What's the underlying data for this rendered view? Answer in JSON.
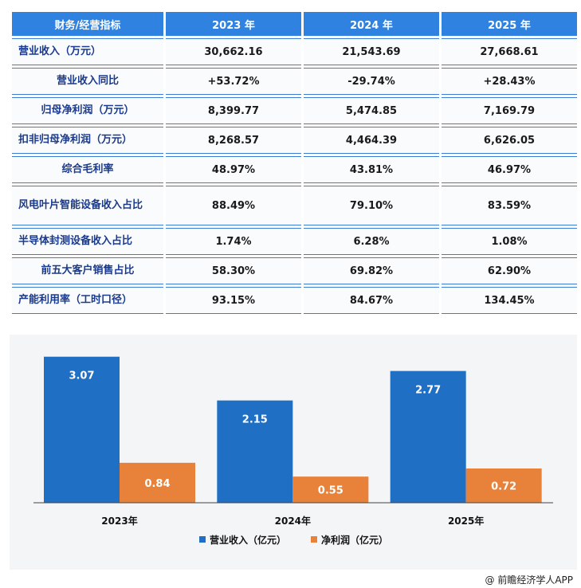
{
  "table": {
    "headers": [
      "财务/经营指标",
      "2023 年",
      "2024 年",
      "2025 年"
    ],
    "rows": [
      {
        "metric": "营业收入（万元）",
        "values": [
          "30,662.16",
          "21,543.69",
          "27,668.61"
        ]
      },
      {
        "metric": "营业收入同比",
        "values": [
          "+53.72%",
          "-29.74%",
          "+28.43%"
        ]
      },
      {
        "metric": "归母净利润（万元）",
        "values": [
          "8,399.77",
          "5,474.85",
          "7,169.79"
        ]
      },
      {
        "metric": "扣非归母净利润（万元）",
        "values": [
          "8,268.57",
          "4,464.39",
          "6,626.05"
        ]
      },
      {
        "metric": "综合毛利率",
        "values": [
          "48.97%",
          "43.81%",
          "46.97%"
        ]
      },
      {
        "metric": "风电叶片智能设备收入占比",
        "values": [
          "88.49%",
          "79.10%",
          "83.59%"
        ]
      },
      {
        "metric": "半导体封测设备收入占比",
        "values": [
          "1.74%",
          "6.28%",
          "1.08%"
        ]
      },
      {
        "metric": "前五大客户销售占比",
        "values": [
          "58.30%",
          "69.82%",
          "62.90%"
        ]
      },
      {
        "metric": "产能利用率（工时口径）",
        "values": [
          "93.15%",
          "84.67%",
          "134.45%"
        ]
      }
    ]
  },
  "chart_data": {
    "type": "bar",
    "categories": [
      "2023年",
      "2024年",
      "2025年"
    ],
    "series": [
      {
        "name": "营业收入（亿元）",
        "values": [
          3.07,
          2.15,
          2.77
        ],
        "color": "#1f6fc5"
      },
      {
        "name": "净利润（亿元）",
        "values": [
          0.84,
          0.55,
          0.72
        ],
        "color": "#e8823a"
      }
    ],
    "ylim": [
      0,
      3.4
    ],
    "legend": "bottom-center",
    "grid": false
  },
  "footer": "@ 前瞻经济学人APP"
}
